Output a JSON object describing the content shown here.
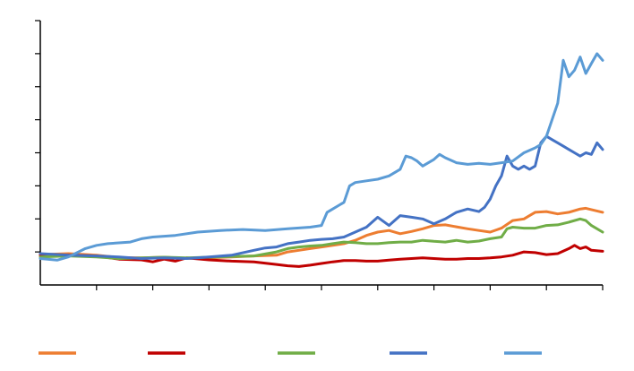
{
  "chart_data": {
    "type": "line",
    "title": "",
    "xlabel": "",
    "ylabel": "",
    "x_range": [
      0,
      100
    ],
    "ylim": [
      0,
      8
    ],
    "x_tick_count": 10,
    "y_tick_count": 8,
    "grid": false,
    "legend_position": "bottom",
    "series": [
      {
        "color": "#ED7D31",
        "points": [
          [
            0,
            0.92
          ],
          [
            5,
            0.95
          ],
          [
            10,
            0.9
          ],
          [
            14,
            0.83
          ],
          [
            18,
            0.82
          ],
          [
            22,
            0.84
          ],
          [
            26,
            0.8
          ],
          [
            30,
            0.82
          ],
          [
            34,
            0.85
          ],
          [
            38,
            0.88
          ],
          [
            42,
            0.9
          ],
          [
            44,
            1.0
          ],
          [
            46,
            1.05
          ],
          [
            48,
            1.1
          ],
          [
            50,
            1.15
          ],
          [
            52,
            1.2
          ],
          [
            54,
            1.25
          ],
          [
            56,
            1.35
          ],
          [
            58,
            1.5
          ],
          [
            60,
            1.6
          ],
          [
            62,
            1.65
          ],
          [
            64,
            1.55
          ],
          [
            66,
            1.62
          ],
          [
            68,
            1.7
          ],
          [
            70,
            1.8
          ],
          [
            72,
            1.82
          ],
          [
            74,
            1.76
          ],
          [
            76,
            1.7
          ],
          [
            78,
            1.65
          ],
          [
            80,
            1.6
          ],
          [
            82,
            1.72
          ],
          [
            84,
            1.95
          ],
          [
            86,
            2.0
          ],
          [
            87,
            2.1
          ],
          [
            88,
            2.2
          ],
          [
            90,
            2.22
          ],
          [
            92,
            2.15
          ],
          [
            94,
            2.2
          ],
          [
            96,
            2.3
          ],
          [
            97,
            2.32
          ],
          [
            98,
            2.28
          ],
          [
            100,
            2.2
          ]
        ]
      },
      {
        "color": "#C00000",
        "points": [
          [
            0,
            0.9
          ],
          [
            6,
            0.9
          ],
          [
            10,
            0.88
          ],
          [
            14,
            0.78
          ],
          [
            18,
            0.76
          ],
          [
            20,
            0.7
          ],
          [
            22,
            0.78
          ],
          [
            24,
            0.72
          ],
          [
            26,
            0.82
          ],
          [
            30,
            0.76
          ],
          [
            34,
            0.72
          ],
          [
            38,
            0.7
          ],
          [
            42,
            0.62
          ],
          [
            44,
            0.58
          ],
          [
            46,
            0.56
          ],
          [
            48,
            0.6
          ],
          [
            50,
            0.65
          ],
          [
            52,
            0.7
          ],
          [
            54,
            0.74
          ],
          [
            56,
            0.74
          ],
          [
            58,
            0.72
          ],
          [
            60,
            0.72
          ],
          [
            62,
            0.75
          ],
          [
            64,
            0.78
          ],
          [
            66,
            0.8
          ],
          [
            68,
            0.82
          ],
          [
            70,
            0.8
          ],
          [
            72,
            0.78
          ],
          [
            74,
            0.78
          ],
          [
            76,
            0.8
          ],
          [
            78,
            0.8
          ],
          [
            80,
            0.82
          ],
          [
            82,
            0.85
          ],
          [
            84,
            0.9
          ],
          [
            86,
            1.0
          ],
          [
            88,
            0.98
          ],
          [
            90,
            0.92
          ],
          [
            92,
            0.95
          ],
          [
            94,
            1.1
          ],
          [
            95,
            1.2
          ],
          [
            96,
            1.1
          ],
          [
            97,
            1.15
          ],
          [
            98,
            1.05
          ],
          [
            100,
            1.02
          ]
        ]
      },
      {
        "color": "#70AD47",
        "points": [
          [
            0,
            0.85
          ],
          [
            5,
            0.88
          ],
          [
            10,
            0.85
          ],
          [
            14,
            0.8
          ],
          [
            18,
            0.82
          ],
          [
            22,
            0.84
          ],
          [
            26,
            0.82
          ],
          [
            30,
            0.84
          ],
          [
            34,
            0.86
          ],
          [
            38,
            0.88
          ],
          [
            42,
            1.0
          ],
          [
            44,
            1.1
          ],
          [
            46,
            1.15
          ],
          [
            48,
            1.18
          ],
          [
            50,
            1.2
          ],
          [
            52,
            1.25
          ],
          [
            54,
            1.3
          ],
          [
            56,
            1.28
          ],
          [
            58,
            1.25
          ],
          [
            60,
            1.25
          ],
          [
            62,
            1.28
          ],
          [
            64,
            1.3
          ],
          [
            66,
            1.3
          ],
          [
            68,
            1.35
          ],
          [
            70,
            1.32
          ],
          [
            72,
            1.3
          ],
          [
            74,
            1.35
          ],
          [
            76,
            1.3
          ],
          [
            78,
            1.33
          ],
          [
            80,
            1.4
          ],
          [
            82,
            1.45
          ],
          [
            83,
            1.7
          ],
          [
            84,
            1.75
          ],
          [
            86,
            1.72
          ],
          [
            88,
            1.72
          ],
          [
            90,
            1.8
          ],
          [
            92,
            1.82
          ],
          [
            94,
            1.9
          ],
          [
            96,
            2.0
          ],
          [
            97,
            1.95
          ],
          [
            98,
            1.8
          ],
          [
            100,
            1.6
          ]
        ]
      },
      {
        "color": "#4472C4",
        "points": [
          [
            0,
            0.95
          ],
          [
            5,
            0.9
          ],
          [
            10,
            0.88
          ],
          [
            14,
            0.85
          ],
          [
            18,
            0.8
          ],
          [
            22,
            0.82
          ],
          [
            26,
            0.8
          ],
          [
            30,
            0.85
          ],
          [
            34,
            0.9
          ],
          [
            38,
            1.05
          ],
          [
            40,
            1.12
          ],
          [
            42,
            1.15
          ],
          [
            44,
            1.25
          ],
          [
            46,
            1.3
          ],
          [
            48,
            1.35
          ],
          [
            50,
            1.38
          ],
          [
            52,
            1.4
          ],
          [
            54,
            1.45
          ],
          [
            56,
            1.6
          ],
          [
            58,
            1.75
          ],
          [
            60,
            2.05
          ],
          [
            62,
            1.8
          ],
          [
            64,
            2.1
          ],
          [
            66,
            2.05
          ],
          [
            68,
            2.0
          ],
          [
            70,
            1.85
          ],
          [
            72,
            2.0
          ],
          [
            74,
            2.2
          ],
          [
            76,
            2.3
          ],
          [
            78,
            2.22
          ],
          [
            79,
            2.35
          ],
          [
            80,
            2.6
          ],
          [
            81,
            3.0
          ],
          [
            82,
            3.3
          ],
          [
            83,
            3.9
          ],
          [
            84,
            3.6
          ],
          [
            85,
            3.5
          ],
          [
            86,
            3.6
          ],
          [
            87,
            3.5
          ],
          [
            88,
            3.6
          ],
          [
            89,
            4.3
          ],
          [
            90,
            4.5
          ],
          [
            91,
            4.4
          ],
          [
            92,
            4.3
          ],
          [
            93,
            4.2
          ],
          [
            94,
            4.1
          ],
          [
            95,
            4.0
          ],
          [
            96,
            3.9
          ],
          [
            97,
            4.0
          ],
          [
            98,
            3.95
          ],
          [
            99,
            4.3
          ],
          [
            100,
            4.1
          ]
        ]
      },
      {
        "color": "#5B9BD5",
        "points": [
          [
            0,
            0.8
          ],
          [
            3,
            0.75
          ],
          [
            5,
            0.85
          ],
          [
            8,
            1.1
          ],
          [
            10,
            1.2
          ],
          [
            12,
            1.25
          ],
          [
            16,
            1.3
          ],
          [
            18,
            1.4
          ],
          [
            20,
            1.45
          ],
          [
            24,
            1.5
          ],
          [
            28,
            1.6
          ],
          [
            32,
            1.65
          ],
          [
            36,
            1.68
          ],
          [
            40,
            1.65
          ],
          [
            44,
            1.7
          ],
          [
            48,
            1.75
          ],
          [
            50,
            1.8
          ],
          [
            51,
            2.2
          ],
          [
            52,
            2.3
          ],
          [
            53,
            2.4
          ],
          [
            54,
            2.5
          ],
          [
            55,
            3.0
          ],
          [
            56,
            3.1
          ],
          [
            58,
            3.15
          ],
          [
            60,
            3.2
          ],
          [
            62,
            3.3
          ],
          [
            64,
            3.5
          ],
          [
            65,
            3.9
          ],
          [
            66,
            3.85
          ],
          [
            67,
            3.75
          ],
          [
            68,
            3.6
          ],
          [
            70,
            3.8
          ],
          [
            71,
            3.95
          ],
          [
            72,
            3.85
          ],
          [
            74,
            3.7
          ],
          [
            76,
            3.65
          ],
          [
            78,
            3.68
          ],
          [
            80,
            3.65
          ],
          [
            82,
            3.7
          ],
          [
            84,
            3.75
          ],
          [
            86,
            4.0
          ],
          [
            88,
            4.15
          ],
          [
            89,
            4.25
          ],
          [
            90,
            4.5
          ],
          [
            91,
            5.0
          ],
          [
            92,
            5.5
          ],
          [
            93,
            6.8
          ],
          [
            94,
            6.3
          ],
          [
            95,
            6.5
          ],
          [
            96,
            6.9
          ],
          [
            97,
            6.4
          ],
          [
            98,
            6.7
          ],
          [
            99,
            7.0
          ],
          [
            100,
            6.8
          ]
        ]
      }
    ]
  }
}
